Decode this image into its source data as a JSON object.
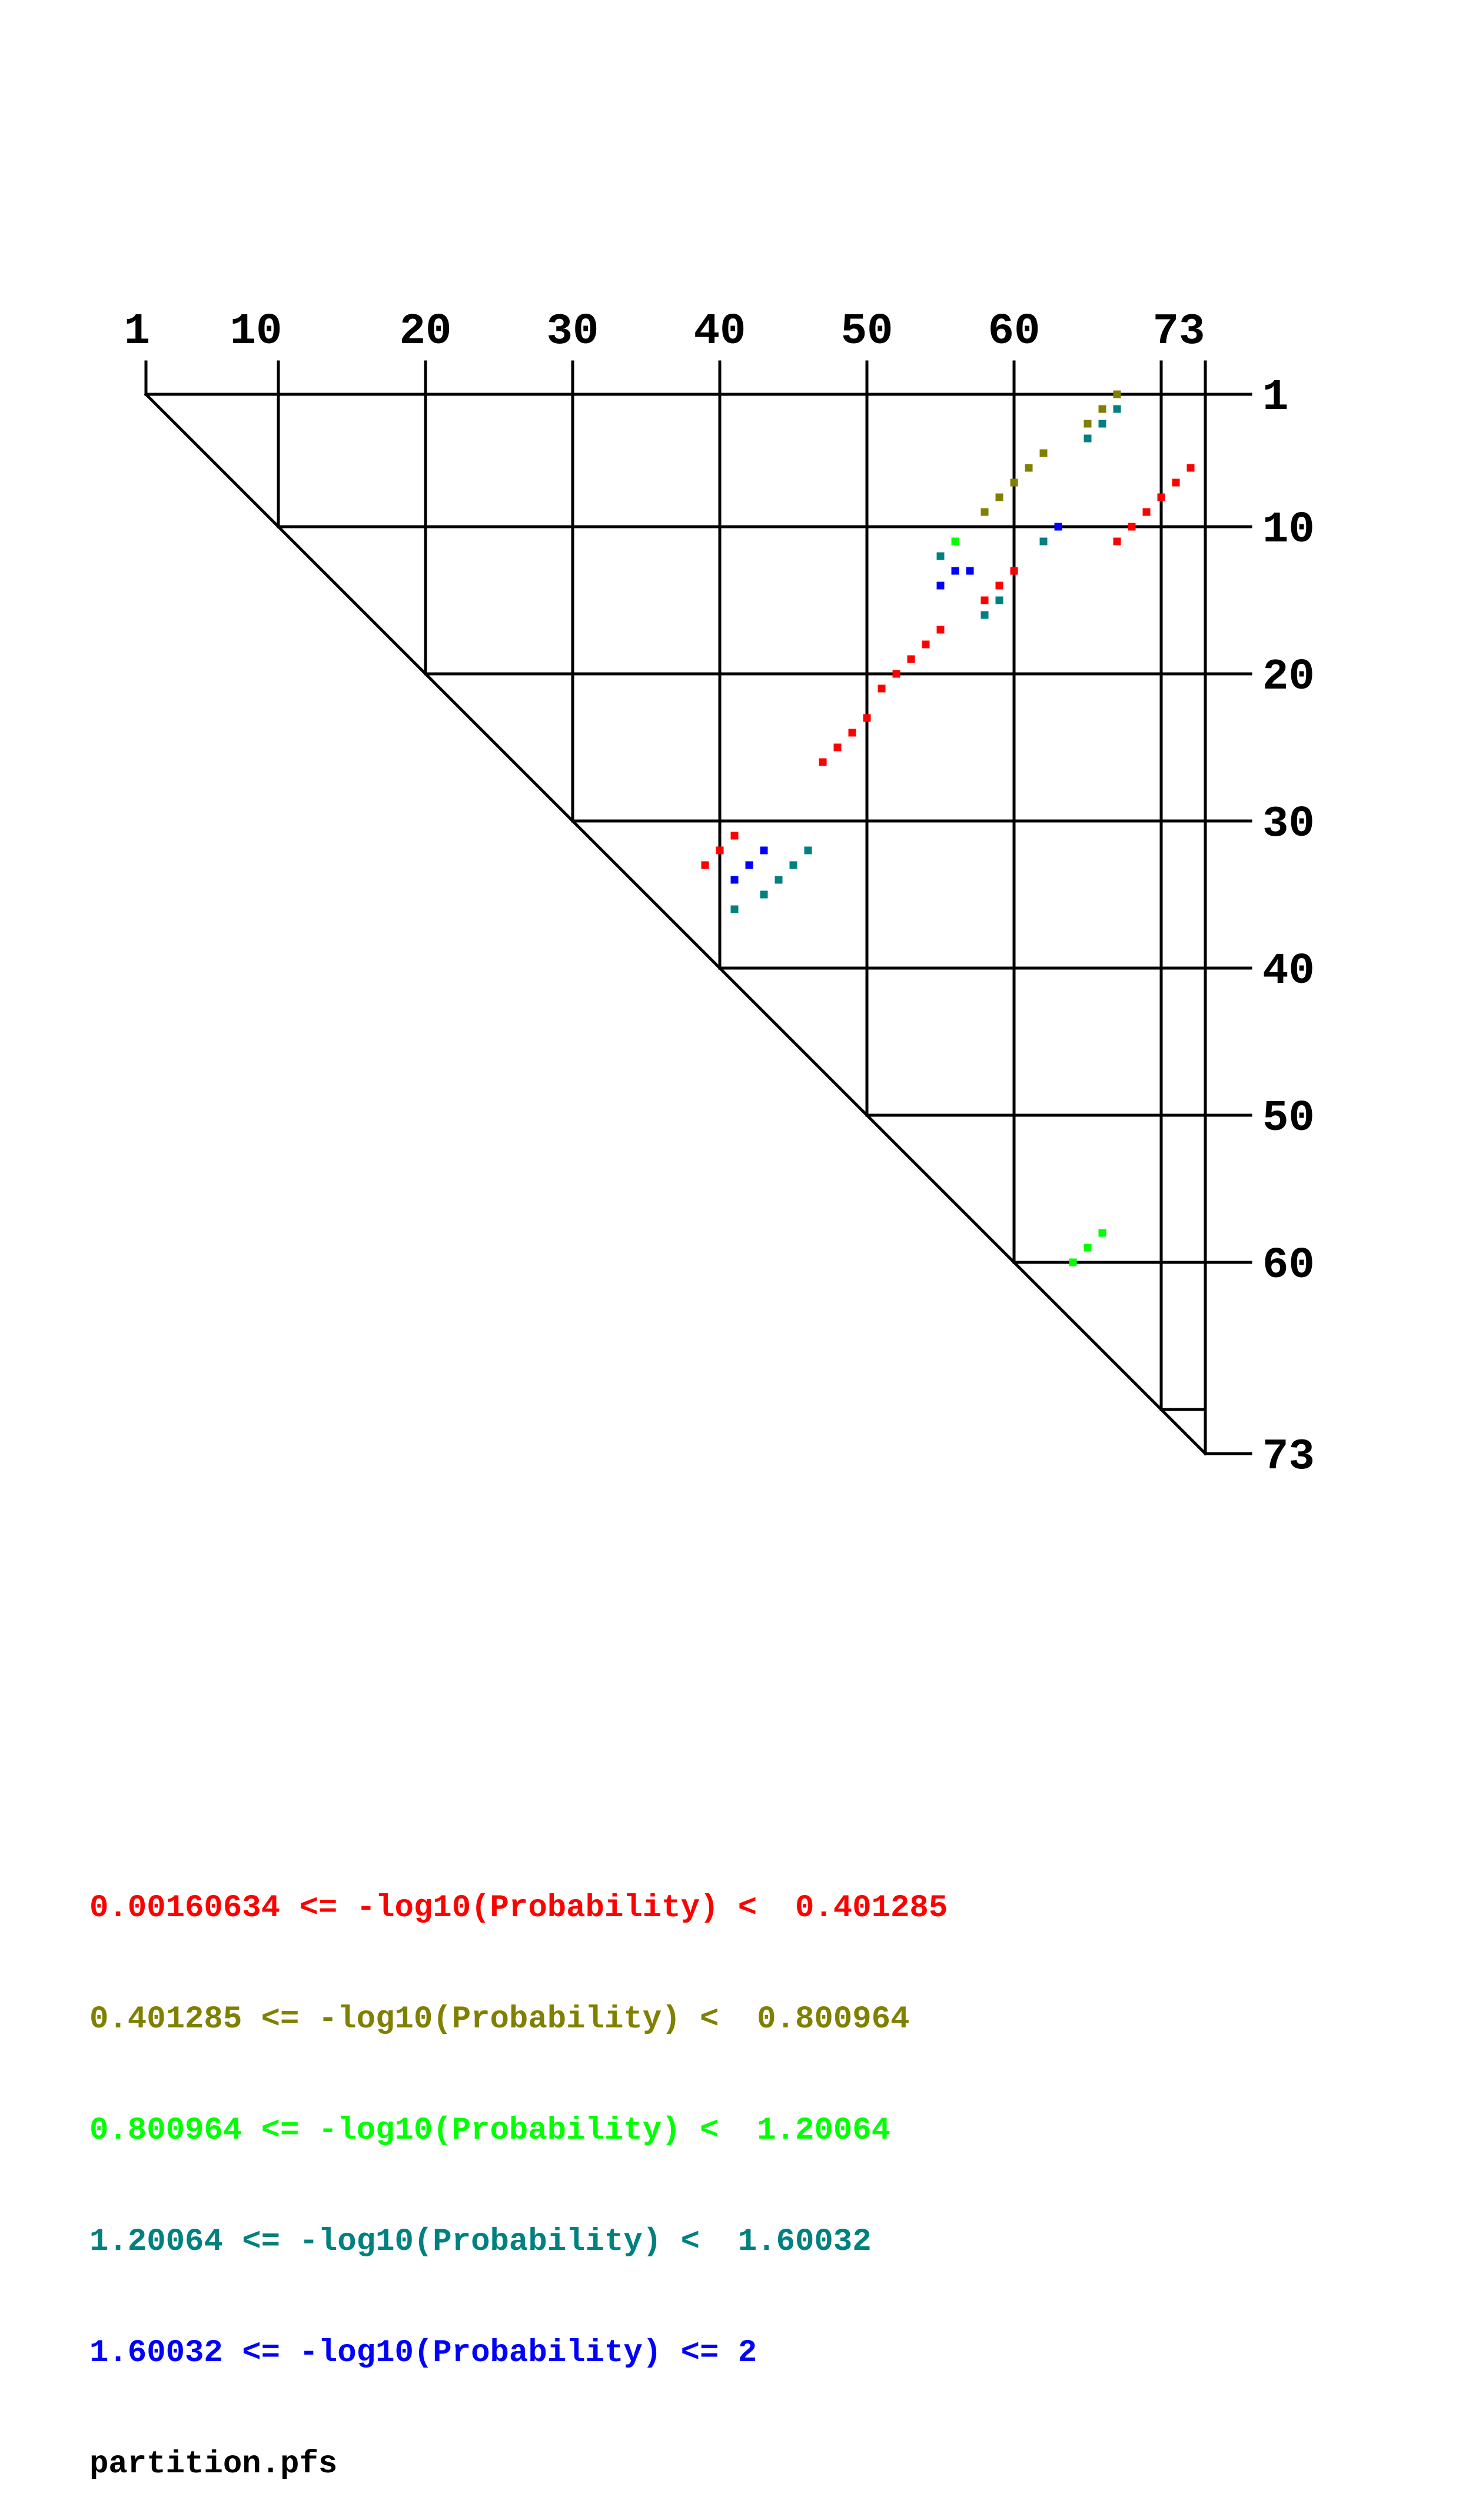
{
  "chart_data": {
    "type": "heatmap",
    "title": "",
    "xlabel": "",
    "ylabel": "",
    "sequence_length": 73,
    "x_tick_labels": [
      "1",
      "10",
      "20",
      "30",
      "40",
      "50",
      "60",
      "73"
    ],
    "y_tick_labels": [
      "1",
      "10",
      "20",
      "30",
      "40",
      "50",
      "60",
      "73"
    ],
    "legend": [
      {
        "label": "0.00160634 <= -log10(Probability) <  0.401285",
        "color": "#ff0000"
      },
      {
        "label": "0.401285 <= -log10(Probability) <  0.800964",
        "color": "#808000"
      },
      {
        "label": "0.800964 <= -log10(Probability) <  1.20064",
        "color": "#00ff00"
      },
      {
        "label": "1.20064 <= -log10(Probability) <  1.60032",
        "color": "#008080"
      },
      {
        "label": "1.60032 <= -log10(Probability) <= 2",
        "color": "#0000ff"
      }
    ],
    "series": [
      {
        "name": "0.00160634 <= -log10(Probability) <  0.401285",
        "color": "#ff0000",
        "pairs": [
          [
            6,
            72
          ],
          [
            7,
            71
          ],
          [
            8,
            70
          ],
          [
            9,
            69
          ],
          [
            10,
            68
          ],
          [
            11,
            67
          ],
          [
            13,
            60
          ],
          [
            14,
            59
          ],
          [
            15,
            58
          ],
          [
            17,
            55
          ],
          [
            18,
            54
          ],
          [
            19,
            53
          ],
          [
            20,
            52
          ],
          [
            21,
            51
          ],
          [
            23,
            50
          ],
          [
            24,
            49
          ],
          [
            25,
            48
          ],
          [
            26,
            47
          ],
          [
            31,
            41
          ],
          [
            32,
            40
          ],
          [
            33,
            39
          ]
        ]
      },
      {
        "name": "0.401285 <= -log10(Probability) <  0.800964",
        "color": "#808000",
        "pairs": [
          [
            1,
            67
          ],
          [
            2,
            66
          ],
          [
            3,
            65
          ],
          [
            5,
            62
          ],
          [
            6,
            61
          ],
          [
            7,
            60
          ],
          [
            8,
            59
          ],
          [
            9,
            58
          ]
        ]
      },
      {
        "name": "0.800964 <= -log10(Probability) <  1.20064",
        "color": "#00ff00",
        "pairs": [
          [
            11,
            56
          ],
          [
            58,
            66
          ],
          [
            59,
            65
          ],
          [
            60,
            64
          ]
        ]
      },
      {
        "name": "1.20064 <= -log10(Probability) <  1.60032",
        "color": "#008080",
        "pairs": [
          [
            2,
            67
          ],
          [
            3,
            66
          ],
          [
            4,
            65
          ],
          [
            11,
            62
          ],
          [
            12,
            55
          ],
          [
            15,
            59
          ],
          [
            16,
            58
          ],
          [
            32,
            46
          ],
          [
            33,
            45
          ],
          [
            34,
            44
          ],
          [
            35,
            43
          ],
          [
            36,
            41
          ]
        ]
      },
      {
        "name": "1.60032 <= -log10(Probability) <= 2",
        "color": "#0000ff",
        "pairs": [
          [
            10,
            63
          ],
          [
            13,
            56
          ],
          [
            13,
            57
          ],
          [
            14,
            55
          ],
          [
            32,
            43
          ],
          [
            33,
            42
          ],
          [
            34,
            41
          ]
        ]
      }
    ]
  },
  "footer": {
    "filename": "partition.pfs"
  }
}
